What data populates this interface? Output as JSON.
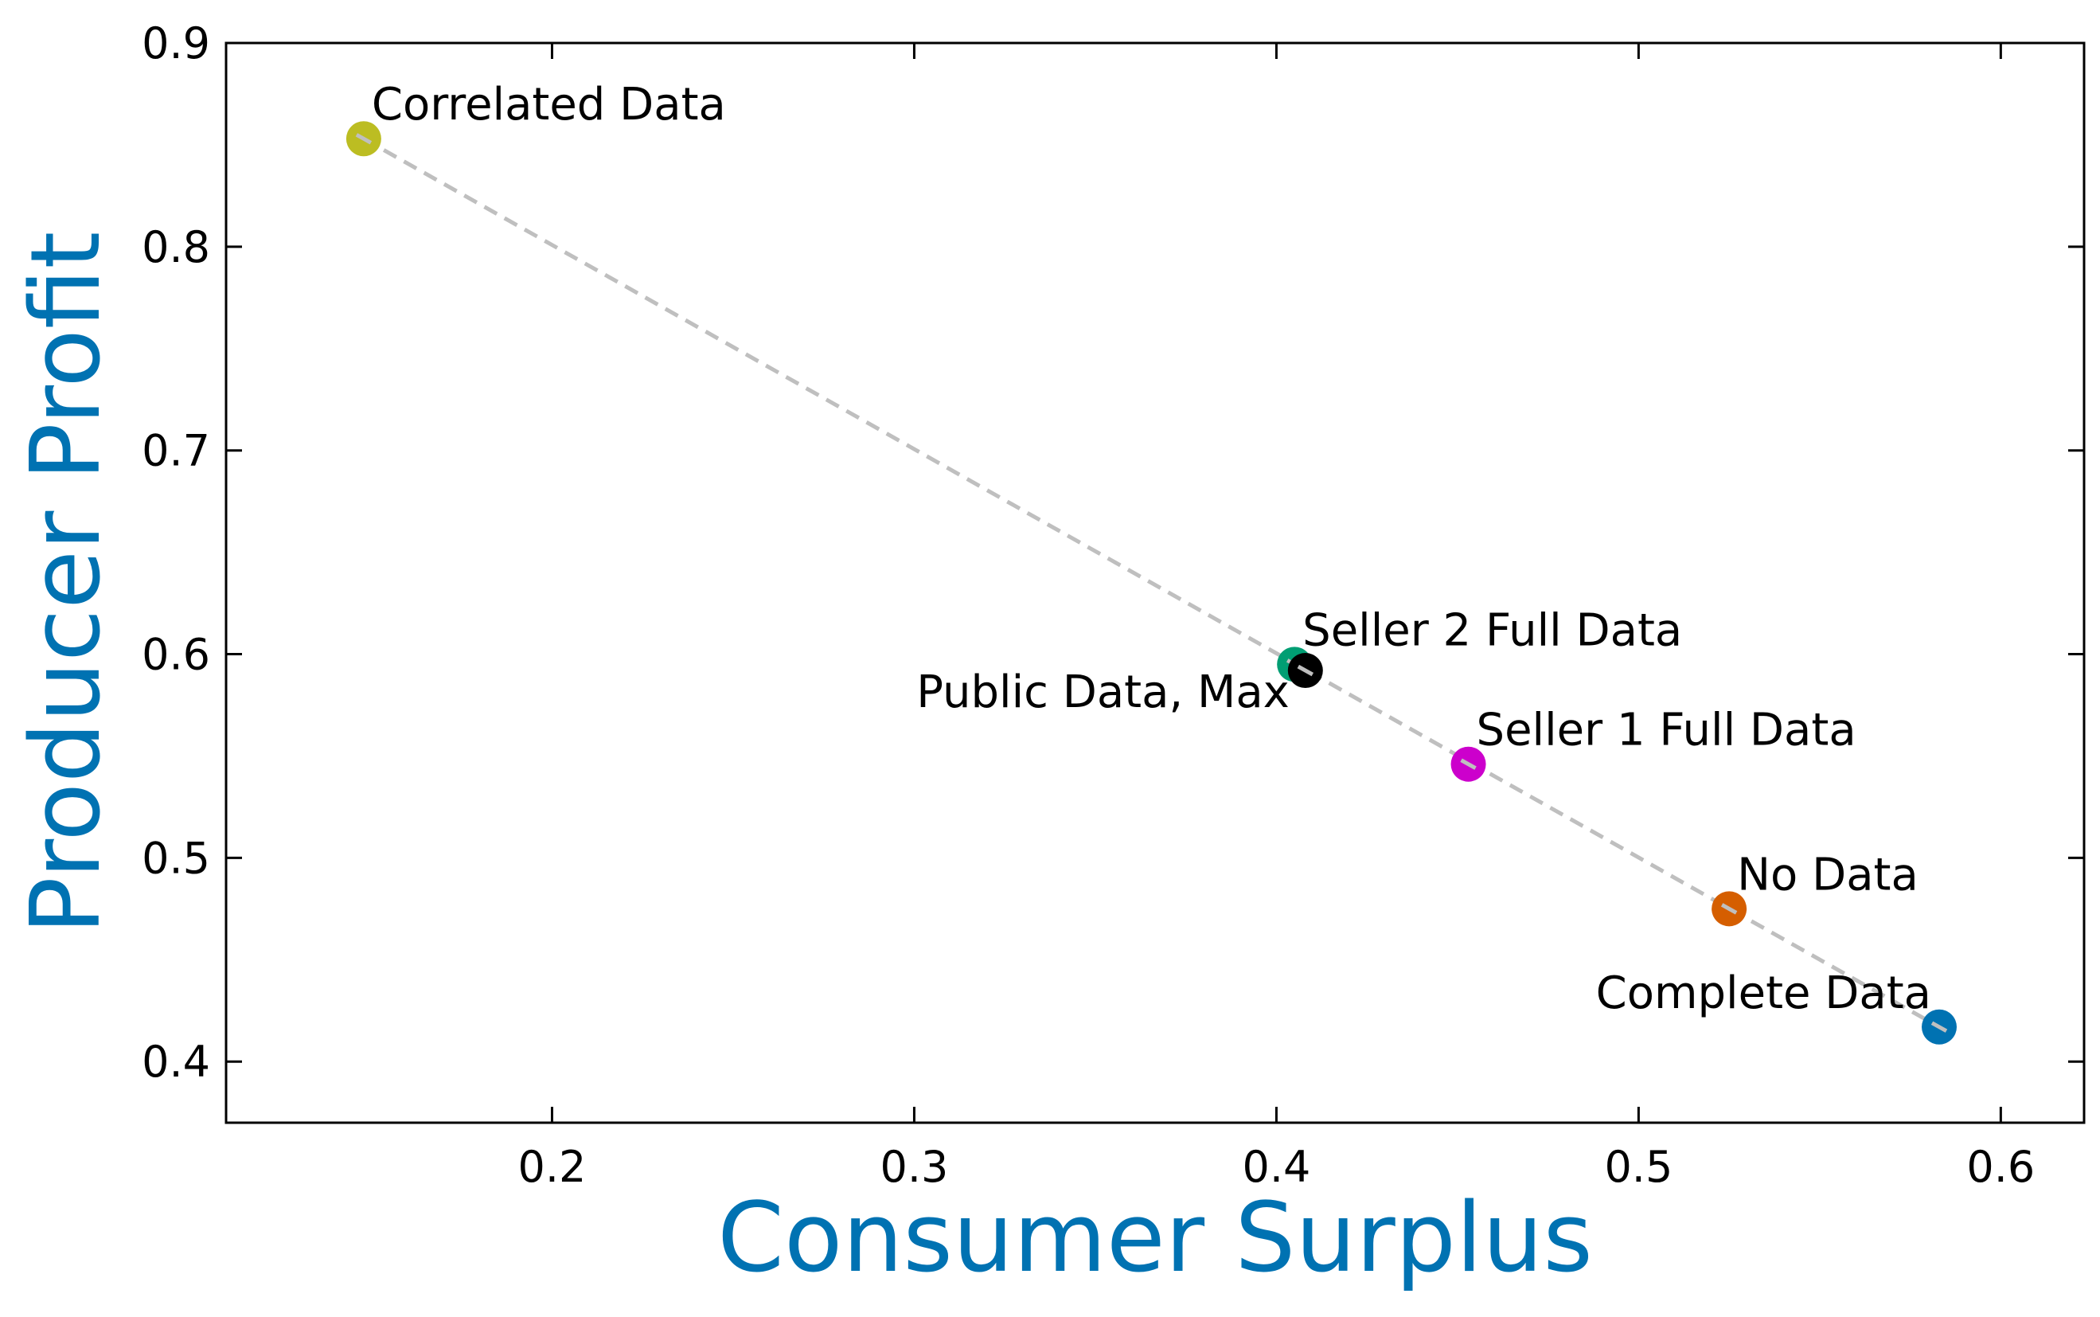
{
  "chart_data": {
    "type": "scatter",
    "title": "",
    "xlabel": "Consumer Surplus",
    "ylabel": "Producer Profit",
    "xlim": [
      0.11,
      0.623
    ],
    "ylim": [
      0.37,
      0.9
    ],
    "xticks": [
      0.2,
      0.3,
      0.4,
      0.5,
      0.6
    ],
    "xtick_labels": [
      "0.2",
      "0.3",
      "0.4",
      "0.5",
      "0.6"
    ],
    "yticks": [
      0.4,
      0.5,
      0.6,
      0.7,
      0.8,
      0.9
    ],
    "ytick_labels": [
      "0.4",
      "0.5",
      "0.6",
      "0.7",
      "0.8",
      "0.9"
    ],
    "grid": false,
    "legend": "none",
    "label_color": "#0072b2",
    "trend_line": {
      "style": "dashed",
      "color": "#bfbfbf",
      "from": [
        0.148,
        0.853
      ],
      "to": [
        0.583,
        0.417
      ]
    },
    "points": [
      {
        "label": "Correlated Data",
        "x": 0.148,
        "y": 0.853,
        "color": "#bcbd22",
        "label_anchor": "upper-right"
      },
      {
        "label": "Seller 2 Full Data",
        "x": 0.405,
        "y": 0.595,
        "color": "#009e73",
        "label_anchor": "upper-right"
      },
      {
        "label": "Public Data, Max",
        "x": 0.408,
        "y": 0.592,
        "color": "#000000",
        "label_anchor": "lower-left"
      },
      {
        "label": "Seller 1 Full Data",
        "x": 0.453,
        "y": 0.546,
        "color": "#cc00cc",
        "label_anchor": "upper-right"
      },
      {
        "label": "No Data",
        "x": 0.525,
        "y": 0.475,
        "color": "#d55e00",
        "label_anchor": "upper-right"
      },
      {
        "label": "Complete Data",
        "x": 0.583,
        "y": 0.417,
        "color": "#0072b2",
        "label_anchor": "upper-left"
      }
    ]
  }
}
